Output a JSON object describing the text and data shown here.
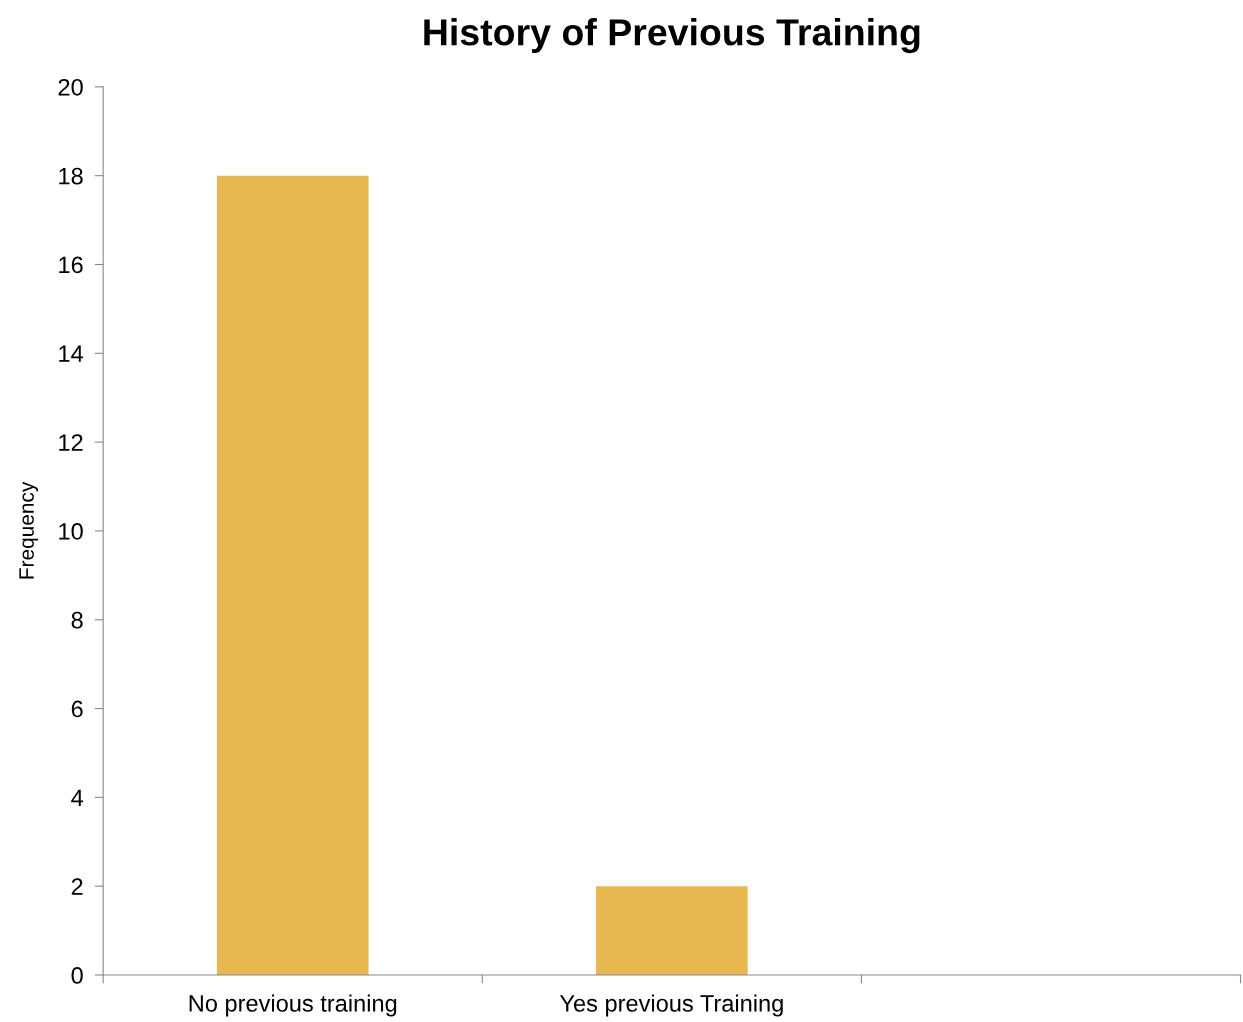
{
  "chart_data": {
    "type": "bar",
    "title": "History of Previous Training",
    "ylabel": "Frequency",
    "categories": [
      "No previous training",
      "Yes previous Training",
      null
    ],
    "values": [
      18,
      2,
      null
    ],
    "color": "#e6b84f",
    "ylim": [
      0,
      20
    ],
    "yticks": [
      0,
      2,
      4,
      6,
      8,
      10,
      12,
      14,
      16,
      18,
      20
    ],
    "grid": false,
    "legend": false
  }
}
